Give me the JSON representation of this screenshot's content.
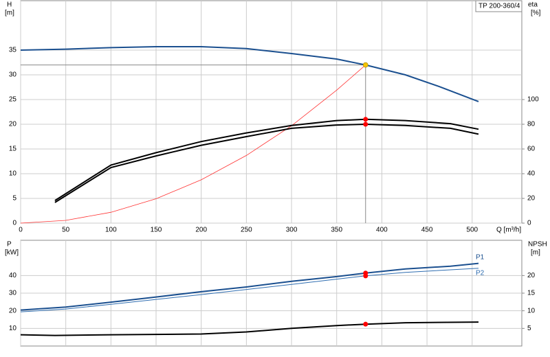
{
  "chart_data": [
    {
      "type": "line",
      "annotation": "TP 200-360/4",
      "ylabel": "H",
      "yunit": "[m]",
      "y2label": "eta",
      "y2unit": "[%]",
      "xlabel": "Q [m³/h]",
      "xlim": [
        0,
        555
      ],
      "xticks": [
        0,
        50,
        100,
        150,
        200,
        250,
        300,
        350,
        400,
        450,
        500
      ],
      "show_xtick_labels": true,
      "ylim": [
        0,
        45
      ],
      "yticks": [
        0,
        5,
        10,
        15,
        20,
        25,
        30,
        35
      ],
      "y2lim": [
        0,
        180
      ],
      "y2ticks": [
        0,
        20,
        40,
        60,
        80,
        100
      ],
      "grid": true,
      "duty_point": {
        "x": 382,
        "y": 32,
        "color": "#f5c400",
        "line_color": "#888888"
      },
      "series": [
        {
          "color": "#1a4f8f",
          "width": 2,
          "x": [
            0,
            50,
            100,
            150,
            200,
            250,
            300,
            350,
            382,
            426,
            464,
            507
          ],
          "values": [
            35,
            35.2,
            35.5,
            35.7,
            35.7,
            35.3,
            34.3,
            33.2,
            32,
            30,
            27.6,
            24.6
          ]
        },
        {
          "color": "#ff3030",
          "width": 0.8,
          "x": [
            0,
            50,
            100,
            150,
            200,
            250,
            300,
            350,
            382
          ],
          "values": [
            0,
            0.55,
            2.19,
            4.93,
            8.77,
            13.7,
            19.7,
            26.9,
            32
          ]
        },
        {
          "color": "#000000",
          "width": 2,
          "axis": "y2",
          "x": [
            38,
            100,
            150,
            200,
            250,
            300,
            350,
            382,
            426,
            476,
            507
          ],
          "values": [
            18.3,
            47,
            57,
            66,
            73,
            79,
            83,
            84,
            83,
            80.5,
            76
          ]
        },
        {
          "color": "#000000",
          "width": 2,
          "axis": "y2",
          "x": [
            38,
            100,
            150,
            200,
            250,
            300,
            350,
            382,
            426,
            476,
            507
          ],
          "values": [
            16.7,
            45,
            54.4,
            63,
            70,
            76.7,
            79.4,
            80,
            79,
            76.7,
            72
          ]
        },
        {
          "style": "point",
          "color": "#ff0000",
          "axis": "y2",
          "x": [
            382,
            382
          ],
          "values": [
            84,
            80
          ]
        }
      ]
    },
    {
      "type": "line",
      "ylabel": "P",
      "yunit": "[kW]",
      "y2label": "NPSH",
      "y2unit": "[m]",
      "xlim": [
        0,
        555
      ],
      "xticks": [
        0,
        50,
        100,
        150,
        200,
        250,
        300,
        350,
        400,
        450,
        500
      ],
      "show_xtick_labels": false,
      "ylim": [
        0,
        60
      ],
      "yticks": [
        10,
        20,
        30,
        40
      ],
      "y2lim": [
        0,
        30
      ],
      "y2ticks": [
        5,
        10,
        15,
        20
      ],
      "grid": true,
      "series": [
        {
          "name": "P1",
          "color": "#1a4f8f",
          "width": 2,
          "x": [
            0,
            50,
            100,
            150,
            200,
            250,
            300,
            350,
            382,
            426,
            476,
            507
          ],
          "values": [
            20.4,
            22.1,
            24.9,
            27.8,
            30.8,
            33.5,
            36.7,
            39.4,
            41.4,
            43.7,
            45.3,
            46.9
          ]
        },
        {
          "name": "P2",
          "color": "#2d6cb0",
          "width": 1,
          "x": [
            0,
            50,
            100,
            200,
            300,
            382,
            426,
            507
          ],
          "values": [
            19.4,
            21,
            23.7,
            29.2,
            35,
            39.8,
            41.8,
            44.1
          ]
        },
        {
          "color": "#000000",
          "width": 2,
          "axis": "y2",
          "x": [
            0,
            38,
            100,
            200,
            250,
            300,
            350,
            382,
            426,
            507
          ],
          "values": [
            3.2,
            3,
            3.2,
            3.4,
            4,
            5,
            5.8,
            6.2,
            6.6,
            6.8
          ]
        },
        {
          "style": "point",
          "color": "#ff0000",
          "x": [
            382,
            382
          ],
          "values": [
            41.4,
            39.8
          ]
        },
        {
          "style": "point",
          "color": "#ff0000",
          "axis": "y2",
          "x": [
            382
          ],
          "values": [
            6.2
          ]
        }
      ]
    }
  ]
}
